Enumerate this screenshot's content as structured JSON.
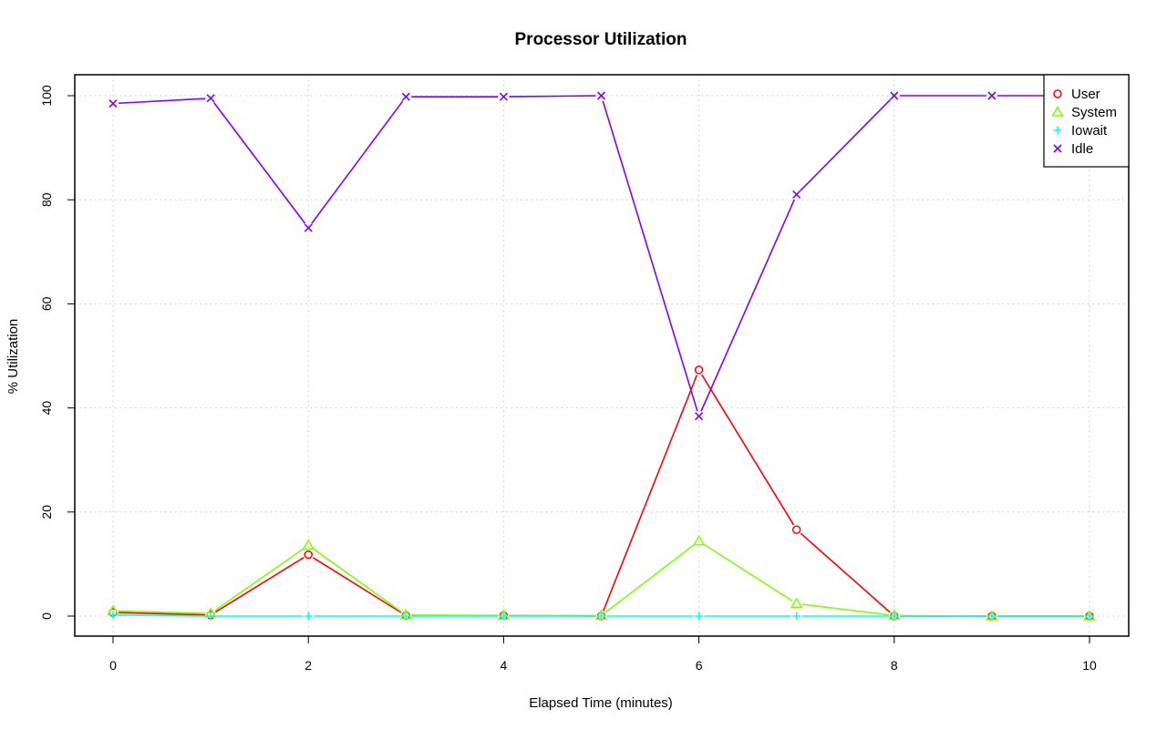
{
  "chart_data": {
    "type": "line",
    "title": "Processor Utilization",
    "xlabel": "Elapsed Time (minutes)",
    "ylabel": "% Utilization",
    "xlim": [
      0,
      10
    ],
    "ylim": [
      0,
      100
    ],
    "x_ticks": [
      0,
      2,
      4,
      6,
      8,
      10
    ],
    "y_ticks": [
      0,
      20,
      40,
      60,
      80,
      100
    ],
    "grid": true,
    "legend_position": "top-right",
    "x": [
      0,
      1,
      2,
      3,
      4,
      5,
      6,
      7,
      8,
      9,
      10
    ],
    "series": [
      {
        "name": "User",
        "color": "#ff0000",
        "marker": "circle",
        "values": [
          0.7,
          0.2,
          11.8,
          0.1,
          0.1,
          0.0,
          47.3,
          16.6,
          0.0,
          0.0,
          0.0
        ]
      },
      {
        "name": "System",
        "color": "#80ff00",
        "marker": "triangle",
        "values": [
          1.0,
          0.5,
          13.6,
          0.2,
          0.1,
          0.1,
          14.4,
          2.4,
          0.1,
          0.0,
          0.0
        ]
      },
      {
        "name": "Iowait",
        "color": "#00ffff",
        "marker": "plus",
        "values": [
          0.2,
          0.0,
          0.0,
          0.0,
          0.0,
          0.0,
          0.0,
          0.0,
          0.0,
          0.0,
          0.0
        ]
      },
      {
        "name": "Idle",
        "color": "#8000ff",
        "marker": "cross",
        "values": [
          98.5,
          99.5,
          74.6,
          99.8,
          99.8,
          100.0,
          38.4,
          81.0,
          100.0,
          100.0,
          100.0
        ]
      }
    ]
  }
}
